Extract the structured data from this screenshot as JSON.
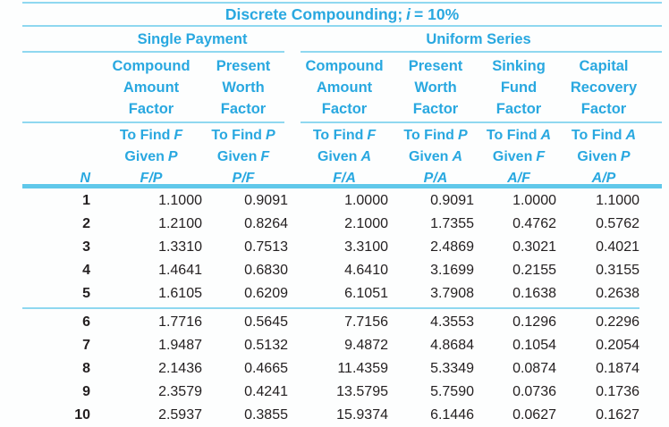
{
  "colors": {
    "accent": "#29a8e0",
    "rule": "#8fd8f0",
    "rule_strong": "#60c8ea",
    "text": "#231f20"
  },
  "title": {
    "prefix": "Discrete Compounding;",
    "var": "i",
    "suffix": "= 10%"
  },
  "groups": {
    "single": "Single Payment",
    "uniform": "Uniform Series"
  },
  "labels": {
    "to_find": "To Find",
    "given": "Given",
    "n": "N"
  },
  "columns": [
    {
      "key": "fp",
      "lines": [
        "Compound",
        "Amount",
        "Factor"
      ],
      "find": "F",
      "given": "P",
      "symbol": "F/P"
    },
    {
      "key": "pf",
      "lines": [
        "Present",
        "Worth",
        "Factor"
      ],
      "find": "P",
      "given": "F",
      "symbol": "P/F"
    },
    {
      "key": "fa",
      "lines": [
        "Compound",
        "Amount",
        "Factor"
      ],
      "find": "F",
      "given": "A",
      "symbol": "F/A"
    },
    {
      "key": "pa",
      "lines": [
        "Present",
        "Worth",
        "Factor"
      ],
      "find": "P",
      "given": "A",
      "symbol": "P/A"
    },
    {
      "key": "af",
      "lines": [
        "Sinking",
        "Fund",
        "Factor"
      ],
      "find": "A",
      "given": "F",
      "symbol": "A/F"
    },
    {
      "key": "ap",
      "lines": [
        "Capital",
        "Recovery",
        "Factor"
      ],
      "find": "A",
      "given": "P",
      "symbol": "A/P"
    }
  ],
  "rows": [
    {
      "n": "1",
      "values": [
        "1.1000",
        "0.9091",
        "1.0000",
        "0.9091",
        "1.0000",
        "1.1000"
      ]
    },
    {
      "n": "2",
      "values": [
        "1.2100",
        "0.8264",
        "2.1000",
        "1.7355",
        "0.4762",
        "0.5762"
      ]
    },
    {
      "n": "3",
      "values": [
        "1.3310",
        "0.7513",
        "3.3100",
        "2.4869",
        "0.3021",
        "0.4021"
      ]
    },
    {
      "n": "4",
      "values": [
        "1.4641",
        "0.6830",
        "4.6410",
        "3.1699",
        "0.2155",
        "0.3155"
      ]
    },
    {
      "n": "5",
      "values": [
        "1.6105",
        "0.6209",
        "6.1051",
        "3.7908",
        "0.1638",
        "0.2638"
      ]
    },
    {
      "n": "6",
      "values": [
        "1.7716",
        "0.5645",
        "7.7156",
        "4.3553",
        "0.1296",
        "0.2296"
      ]
    },
    {
      "n": "7",
      "values": [
        "1.9487",
        "0.5132",
        "9.4872",
        "4.8684",
        "0.1054",
        "0.2054"
      ]
    },
    {
      "n": "8",
      "values": [
        "2.1436",
        "0.4665",
        "11.4359",
        "5.3349",
        "0.0874",
        "0.1874"
      ]
    },
    {
      "n": "9",
      "values": [
        "2.3579",
        "0.4241",
        "13.5795",
        "5.7590",
        "0.0736",
        "0.1736"
      ]
    },
    {
      "n": "10",
      "values": [
        "2.5937",
        "0.3855",
        "15.9374",
        "6.1446",
        "0.0627",
        "0.1627"
      ]
    }
  ]
}
